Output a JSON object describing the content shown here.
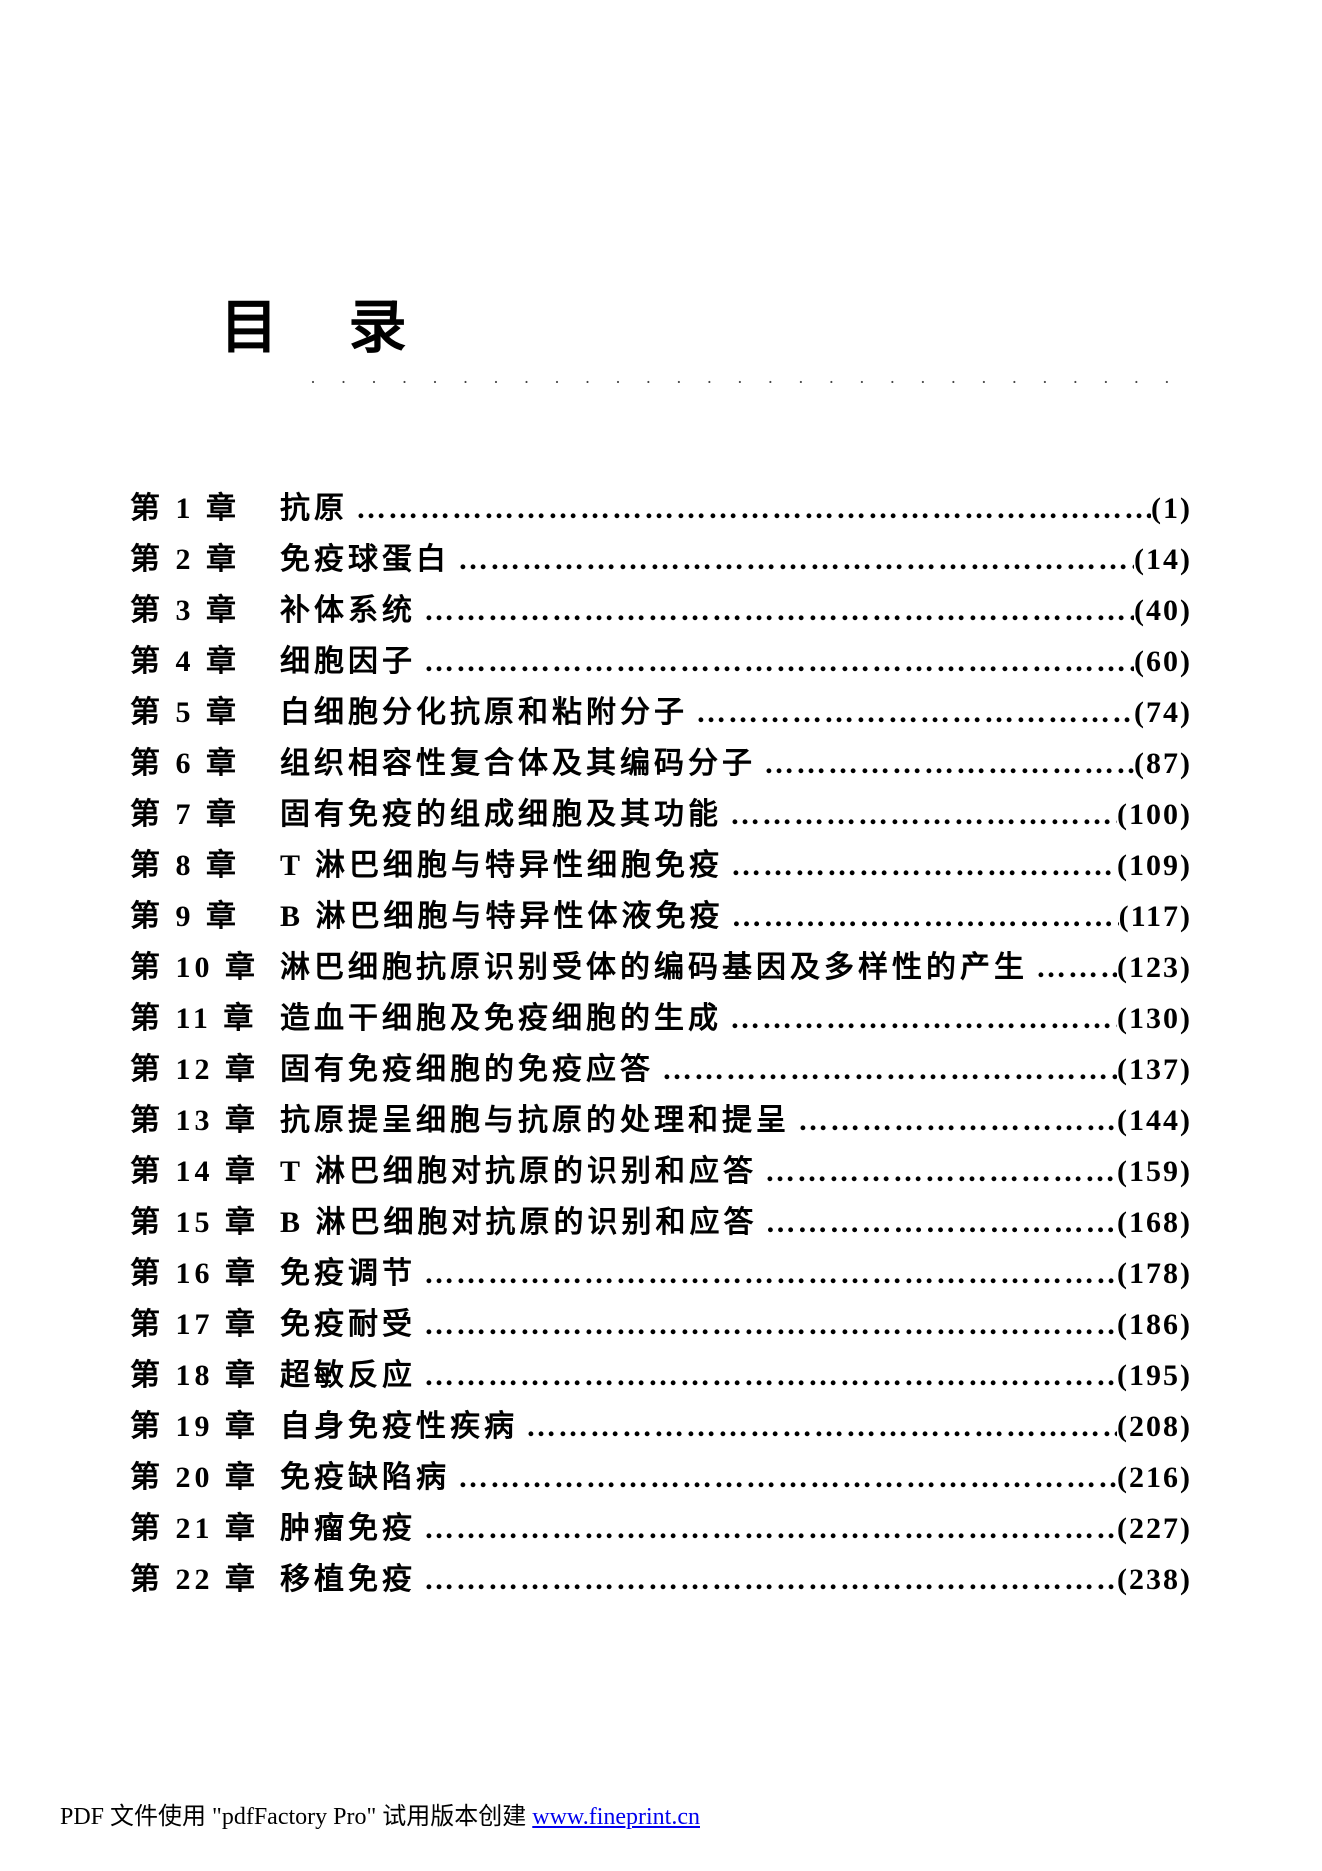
{
  "title": "目 录",
  "dottedLine": "· · · · · · · · · · · · · · · · · · · · · · · · · · · · · · · · · · · · · ·",
  "leader": "……………………………………………………………………………………",
  "toc": [
    {
      "chapter": "第 1 章",
      "title": "抗原",
      "page": "(1)"
    },
    {
      "chapter": "第 2 章",
      "title": "免疫球蛋白",
      "page": "(14)"
    },
    {
      "chapter": "第 3 章",
      "title": "补体系统",
      "page": "(40)"
    },
    {
      "chapter": "第 4 章",
      "title": "细胞因子",
      "page": "(60)"
    },
    {
      "chapter": "第 5 章",
      "title": "白细胞分化抗原和粘附分子",
      "page": "(74)"
    },
    {
      "chapter": "第 6 章",
      "title": "组织相容性复合体及其编码分子",
      "page": "(87)"
    },
    {
      "chapter": "第 7 章",
      "title": "固有免疫的组成细胞及其功能",
      "page": "(100)"
    },
    {
      "chapter": "第 8 章",
      "title": "T 淋巴细胞与特异性细胞免疫",
      "page": "(109)"
    },
    {
      "chapter": "第 9 章",
      "title": "B 淋巴细胞与特异性体液免疫",
      "page": "(117)"
    },
    {
      "chapter": "第 10 章",
      "title": "淋巴细胞抗原识别受体的编码基因及多样性的产生",
      "page": "(123)"
    },
    {
      "chapter": "第 11 章",
      "title": "造血干细胞及免疫细胞的生成",
      "page": "(130)"
    },
    {
      "chapter": "第 12 章",
      "title": "固有免疫细胞的免疫应答",
      "page": "(137)"
    },
    {
      "chapter": "第 13 章",
      "title": "抗原提呈细胞与抗原的处理和提呈",
      "page": "(144)"
    },
    {
      "chapter": "第 14 章",
      "title": "T 淋巴细胞对抗原的识别和应答",
      "page": "(159)"
    },
    {
      "chapter": "第 15 章",
      "title": "B 淋巴细胞对抗原的识别和应答",
      "page": "(168)"
    },
    {
      "chapter": "第 16 章",
      "title": "免疫调节",
      "page": "(178)"
    },
    {
      "chapter": "第 17 章",
      "title": "免疫耐受",
      "page": "(186)"
    },
    {
      "chapter": "第 18 章",
      "title": "超敏反应",
      "page": "(195)"
    },
    {
      "chapter": "第 19 章",
      "title": "自身免疫性疾病",
      "page": "(208)"
    },
    {
      "chapter": "第 20 章",
      "title": "免疫缺陷病",
      "page": "(216)"
    },
    {
      "chapter": "第 21 章",
      "title": "肿瘤免疫",
      "page": "(227)"
    },
    {
      "chapter": "第 22 章",
      "title": "移植免疫",
      "page": "(238)"
    }
  ],
  "footer": {
    "prefix": "PDF 文件使用 \"pdfFactory Pro\" 试用版本创建 ",
    "link": "www.fineprint.cn"
  }
}
